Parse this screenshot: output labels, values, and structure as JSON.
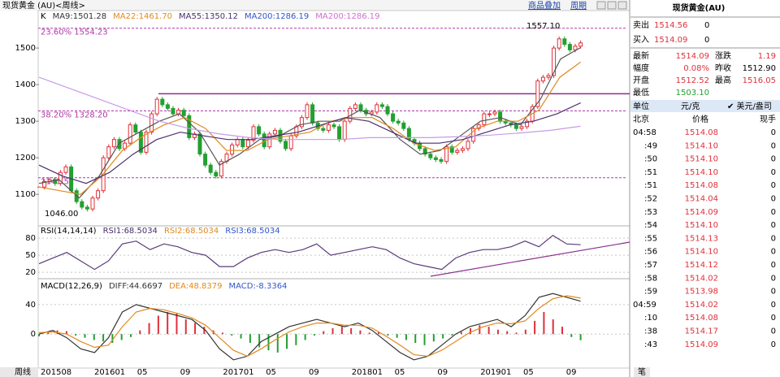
{
  "header": {
    "title": "现货黄金 (AU)<周线>",
    "links": [
      "商品叠加",
      "周期"
    ],
    "footer_tab": "周线",
    "footer_right": "笔"
  },
  "main_chart": {
    "legend": [
      {
        "text": "K",
        "color": "#000000"
      },
      {
        "text": "MA9:1501.28",
        "color": "#333333"
      },
      {
        "text": "MA22:1461.70",
        "color": "#e08a1e"
      },
      {
        "text": "MA55:1350.12",
        "color": "#4b2f6e"
      },
      {
        "text": "MA200:1286.19",
        "color": "#3355cc"
      },
      {
        "text": "MA200:1286.19",
        "color": "#d070d0"
      }
    ],
    "ylim": [
      1036,
      1598
    ],
    "yticks": [
      1100,
      1200,
      1300,
      1400,
      1500
    ],
    "closes": [
      1120,
      1135,
      1140,
      1130,
      1160,
      1175,
      1110,
      1080,
      1065,
      1060,
      1090,
      1110,
      1200,
      1230,
      1250,
      1225,
      1240,
      1290,
      1270,
      1215,
      1270,
      1320,
      1360,
      1345,
      1335,
      1320,
      1330,
      1315,
      1255,
      1265,
      1210,
      1180,
      1160,
      1150,
      1190,
      1210,
      1235,
      1250,
      1230,
      1248,
      1285,
      1265,
      1230,
      1265,
      1275,
      1245,
      1225,
      1260,
      1285,
      1310,
      1345,
      1295,
      1280,
      1275,
      1290,
      1285,
      1250,
      1300,
      1335,
      1345,
      1330,
      1320,
      1325,
      1345,
      1340,
      1320,
      1300,
      1295,
      1280,
      1250,
      1240,
      1225,
      1210,
      1200,
      1195,
      1190,
      1230,
      1215,
      1220,
      1225,
      1245,
      1280,
      1290,
      1320,
      1320,
      1325,
      1300,
      1295,
      1290,
      1280,
      1285,
      1300,
      1340,
      1410,
      1420,
      1425,
      1500,
      1525,
      1510,
      1495,
      1505,
      1514.09
    ],
    "ma_lines": [
      {
        "name": "MA9",
        "color": "#555555",
        "values": [
          1130,
          1140,
          1090,
          1150,
          1240,
          1270,
          1300,
          1320,
          1270,
          1180,
          1210,
          1250,
          1260,
          1290,
          1300,
          1300,
          1330,
          1310,
          1250,
          1210,
          1220,
          1260,
          1300,
          1310,
          1290,
          1360,
          1470,
          1501.28
        ]
      },
      {
        "name": "MA22",
        "color": "#e08a1e",
        "values": [
          1120,
          1110,
          1100,
          1150,
          1220,
          1260,
          1290,
          1310,
          1280,
          1220,
          1220,
          1250,
          1260,
          1270,
          1300,
          1310,
          1310,
          1280,
          1240,
          1220,
          1230,
          1280,
          1300,
          1300,
          1330,
          1420,
          1461.7
        ]
      },
      {
        "name": "MA55",
        "color": "#4b2f6e",
        "values": [
          1180,
          1150,
          1130,
          1160,
          1210,
          1250,
          1270,
          1260,
          1250,
          1250,
          1260,
          1270,
          1290,
          1310,
          1300,
          1270,
          1240,
          1240,
          1250,
          1270,
          1290,
          1300,
          1320,
          1350.12
        ]
      },
      {
        "name": "MA200",
        "color": "#c79be8",
        "values": [
          1420,
          1390,
          1360,
          1330,
          1300,
          1280,
          1265,
          1255,
          1250,
          1250,
          1250,
          1255,
          1255,
          1255,
          1258,
          1262,
          1268,
          1275,
          1286.19
        ]
      }
    ],
    "levels": [
      {
        "value": 1554.23,
        "label": "23.60% 1554.23"
      },
      {
        "value": 1328.2,
        "label": "38.20% 1328.20"
      },
      {
        "value": 1145.51,
        "label": "1145.51"
      }
    ],
    "resistance": 1375,
    "annotations": [
      "1557.10",
      "1046.00"
    ],
    "x_labels": [
      "201508",
      "201601",
      "05",
      "09",
      "201701",
      "05",
      "09",
      "201801",
      "05",
      "09",
      "201901",
      "05",
      "09"
    ]
  },
  "rsi": {
    "legend": [
      {
        "text": "RSI(14,14,14)",
        "color": "#000000"
      },
      {
        "text": "RSI1:68.5034",
        "color": "#4b2f6e"
      },
      {
        "text": "RSI2:68.5034",
        "color": "#e08a1e"
      },
      {
        "text": "RSI3:68.5034",
        "color": "#3355cc"
      }
    ],
    "ylim": [
      13,
      96
    ],
    "yticks": [
      20,
      50,
      80
    ],
    "color": "#5a3a78",
    "values": [
      35,
      45,
      55,
      40,
      25,
      40,
      70,
      75,
      60,
      70,
      65,
      55,
      50,
      30,
      30,
      45,
      55,
      60,
      55,
      60,
      70,
      50,
      55,
      60,
      65,
      60,
      45,
      35,
      30,
      25,
      45,
      55,
      60,
      60,
      65,
      75,
      65,
      85,
      70,
      68.5
    ]
  },
  "macd": {
    "legend": [
      {
        "text": "MACD(12,26,9)",
        "color": "#000000"
      },
      {
        "text": "DIFF:44.6697",
        "color": "#333333"
      },
      {
        "text": "DEA:48.8379",
        "color": "#e08a1e"
      },
      {
        "text": "MACD:-8.3364",
        "color": "#3355cc"
      }
    ],
    "ylim": [
      -45,
      73
    ],
    "yticks": [
      0,
      40
    ],
    "diff": [
      0,
      5,
      -5,
      -20,
      -25,
      -5,
      30,
      40,
      35,
      30,
      25,
      20,
      5,
      -20,
      -35,
      -30,
      -10,
      0,
      10,
      15,
      20,
      15,
      10,
      15,
      5,
      -10,
      -25,
      -35,
      -30,
      -15,
      0,
      10,
      15,
      20,
      10,
      25,
      50,
      55,
      50,
      44.67
    ],
    "dea": [
      2,
      3,
      0,
      -10,
      -18,
      -15,
      10,
      30,
      35,
      33,
      28,
      22,
      12,
      -5,
      -22,
      -30,
      -20,
      -8,
      3,
      10,
      15,
      15,
      12,
      12,
      8,
      -3,
      -15,
      -28,
      -30,
      -22,
      -10,
      2,
      10,
      15,
      14,
      18,
      35,
      48,
      52,
      48.84
    ],
    "histogram": [
      -3,
      2,
      5,
      4,
      -2,
      -5,
      -8,
      -10,
      -12,
      -8,
      -4,
      5,
      15,
      25,
      30,
      28,
      20,
      15,
      10,
      5,
      2,
      -2,
      -6,
      -12,
      -18,
      -22,
      -25,
      -20,
      -15,
      -8,
      -2,
      4,
      8,
      10,
      8,
      5,
      2,
      3,
      -2,
      -5,
      -8,
      -12,
      -15,
      -10,
      -6,
      -2,
      3,
      8,
      12,
      10,
      6,
      4,
      2,
      6,
      18,
      30,
      20,
      10,
      -4,
      -8.3364
    ]
  },
  "panel": {
    "title": "现货黄金(AU)",
    "sell": {
      "label": "卖出",
      "price": "1514.56",
      "vol": "0"
    },
    "buy": {
      "label": "买入",
      "price": "1514.09",
      "vol": "0"
    },
    "quotes": [
      [
        "最新",
        "1514.09",
        "涨跌",
        "1.19"
      ],
      [
        "幅度",
        "0.08%",
        "昨收",
        "1512.90"
      ],
      [
        "开盘",
        "1512.52",
        "最高",
        "1516.05"
      ],
      [
        "最低",
        "1503.10",
        "",
        ""
      ]
    ],
    "unit": [
      "单位",
      "元/克",
      "✔ 美元/盎司"
    ],
    "columns": [
      "北京",
      "价格",
      "现手"
    ],
    "ticks": [
      [
        "04:58",
        "1514.08",
        "0"
      ],
      [
        ":49",
        "1514.10",
        "0"
      ],
      [
        ":50",
        "1514.10",
        "0"
      ],
      [
        ":51",
        "1514.10",
        "0"
      ],
      [
        ":51",
        "1514.08",
        "0"
      ],
      [
        ":52",
        "1514.04",
        "0"
      ],
      [
        ":53",
        "1514.09",
        "0"
      ],
      [
        ":54",
        "1514.10",
        "0"
      ],
      [
        ":55",
        "1514.13",
        "0"
      ],
      [
        ":56",
        "1514.10",
        "0"
      ],
      [
        ":57",
        "1514.12",
        "0"
      ],
      [
        ":58",
        "1514.02",
        "0"
      ],
      [
        ":59",
        "1513.98",
        "0"
      ],
      [
        "04:59",
        "1514.02",
        "0"
      ],
      [
        ":10",
        "1514.08",
        "0"
      ],
      [
        ":38",
        "1514.17",
        "0"
      ],
      [
        ":43",
        "1514.09",
        "0"
      ]
    ]
  }
}
